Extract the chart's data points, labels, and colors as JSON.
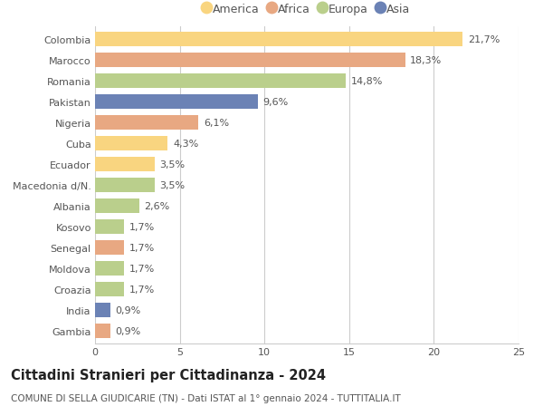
{
  "countries": [
    "Colombia",
    "Marocco",
    "Romania",
    "Pakistan",
    "Nigeria",
    "Cuba",
    "Ecuador",
    "Macedonia d/N.",
    "Albania",
    "Kosovo",
    "Senegal",
    "Moldova",
    "Croazia",
    "India",
    "Gambia"
  ],
  "values": [
    21.7,
    18.3,
    14.8,
    9.6,
    6.1,
    4.3,
    3.5,
    3.5,
    2.6,
    1.7,
    1.7,
    1.7,
    1.7,
    0.9,
    0.9
  ],
  "labels": [
    "21,7%",
    "18,3%",
    "14,8%",
    "9,6%",
    "6,1%",
    "4,3%",
    "3,5%",
    "3,5%",
    "2,6%",
    "1,7%",
    "1,7%",
    "1,7%",
    "1,7%",
    "0,9%",
    "0,9%"
  ],
  "continents": [
    "America",
    "Africa",
    "Europa",
    "Asia",
    "Africa",
    "America",
    "America",
    "Europa",
    "Europa",
    "Europa",
    "Africa",
    "Europa",
    "Europa",
    "Asia",
    "Africa"
  ],
  "continent_colors": {
    "America": "#F9D580",
    "Africa": "#E8A882",
    "Europa": "#BACF8C",
    "Asia": "#6B82B5"
  },
  "legend_order": [
    "America",
    "Africa",
    "Europa",
    "Asia"
  ],
  "xlim": [
    0,
    25
  ],
  "xticks": [
    0,
    5,
    10,
    15,
    20,
    25
  ],
  "title1": "Cittadini Stranieri per Cittadinanza - 2024",
  "title2": "COMUNE DI SELLA GIUDICARIE (TN) - Dati ISTAT al 1° gennaio 2024 - TUTTITALIA.IT",
  "bg_color": "#ffffff",
  "grid_color": "#cccccc",
  "bar_height": 0.7,
  "label_fontsize": 8,
  "ytick_fontsize": 8,
  "xtick_fontsize": 8,
  "legend_fontsize": 9,
  "title1_fontsize": 10.5,
  "title2_fontsize": 7.5
}
